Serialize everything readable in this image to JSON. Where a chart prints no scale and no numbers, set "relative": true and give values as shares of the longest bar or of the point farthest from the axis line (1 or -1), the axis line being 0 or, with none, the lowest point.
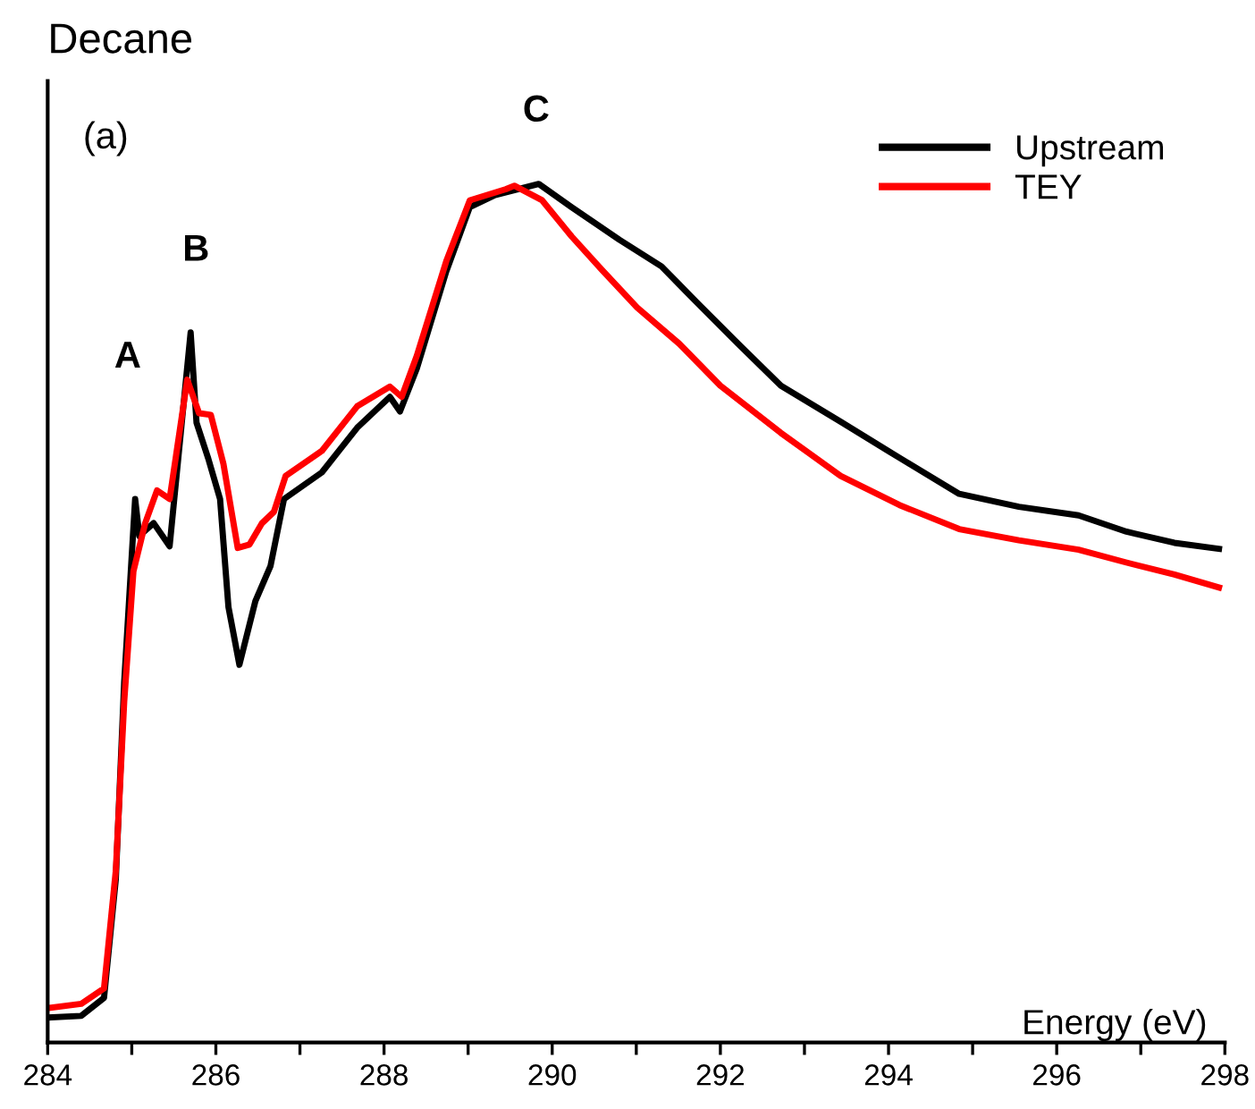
{
  "chart_data": {
    "type": "line",
    "title": "Decane",
    "xlabel": "Energy (eV)",
    "relative": true,
    "xlim": [
      284,
      298
    ],
    "xticks": [
      284,
      {
        "value": 285,
        "label": null
      },
      286,
      {
        "value": 287,
        "label": null
      },
      288,
      {
        "value": 289,
        "label": null
      },
      290,
      {
        "value": 291,
        "label": null
      },
      292,
      {
        "value": 293,
        "label": null
      },
      294,
      {
        "value": 295,
        "label": null
      },
      296,
      {
        "value": 297,
        "label": null
      },
      298
    ],
    "legend": "top right",
    "line_style": "solid",
    "marker": "none",
    "annotations": [
      "(a)",
      "A",
      "B",
      "C"
    ],
    "series": [
      {
        "name": "Upstream",
        "color": "#000000",
        "x": [
          284.0,
          284.4,
          284.67,
          284.81,
          284.91,
          285.04,
          285.09,
          285.26,
          285.45,
          285.7,
          285.77,
          285.91,
          286.05,
          286.15,
          286.28,
          286.47,
          286.65,
          286.81,
          287.26,
          287.68,
          288.07,
          288.19,
          288.39,
          288.74,
          289.02,
          289.32,
          289.84,
          290.23,
          290.8,
          291.3,
          291.72,
          292.21,
          292.72,
          293.43,
          294.13,
          294.84,
          295.55,
          296.26,
          296.83,
          297.4,
          297.93
        ],
        "values": [
          0.029,
          0.031,
          0.052,
          0.19,
          0.42,
          0.633,
          0.59,
          0.605,
          0.578,
          0.827,
          0.722,
          0.68,
          0.633,
          0.507,
          0.44,
          0.514,
          0.555,
          0.633,
          0.664,
          0.716,
          0.752,
          0.735,
          0.785,
          0.898,
          0.973,
          0.987,
          1.0,
          0.973,
          0.935,
          0.904,
          0.862,
          0.814,
          0.765,
          0.723,
          0.681,
          0.639,
          0.624,
          0.614,
          0.595,
          0.582,
          0.575
        ]
      },
      {
        "name": "TEY",
        "color": "#ff0000",
        "x": [
          284.0,
          284.4,
          284.67,
          284.81,
          284.91,
          285.02,
          285.16,
          285.3,
          285.45,
          285.66,
          285.8,
          285.94,
          286.09,
          286.26,
          286.4,
          286.55,
          286.69,
          286.83,
          287.26,
          287.68,
          288.07,
          288.21,
          288.39,
          288.74,
          289.02,
          289.45,
          289.55,
          289.88,
          290.23,
          290.59,
          291.01,
          291.51,
          292.0,
          292.72,
          293.43,
          294.13,
          294.84,
          295.55,
          296.26,
          296.83,
          297.4,
          297.93
        ],
        "values": [
          0.04,
          0.045,
          0.063,
          0.2,
          0.397,
          0.549,
          0.605,
          0.643,
          0.633,
          0.772,
          0.733,
          0.731,
          0.674,
          0.576,
          0.58,
          0.605,
          0.618,
          0.66,
          0.689,
          0.741,
          0.764,
          0.752,
          0.8,
          0.91,
          0.981,
          0.994,
          0.998,
          0.981,
          0.939,
          0.9,
          0.856,
          0.814,
          0.765,
          0.71,
          0.66,
          0.626,
          0.598,
          0.585,
          0.574,
          0.559,
          0.545,
          0.53
        ]
      }
    ]
  }
}
